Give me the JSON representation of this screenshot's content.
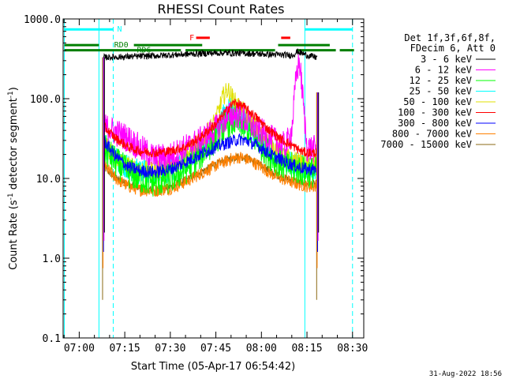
{
  "chart_data": {
    "type": "line",
    "title": "RHESSI Count Rates",
    "xlabel": "Start Time (05-Apr-17 06:54:42)",
    "ylabel_main": "Count Rate (s",
    "ylabel_sup1": "-1",
    "ylabel_mid": " detector segment",
    "ylabel_sup2": "-1",
    "ylabel_end": ")",
    "y_scale": "log",
    "ylim": [
      0.1,
      1000
    ],
    "xlim_minutes": [
      -5.3,
      32.3
    ],
    "xlim_labels": [
      "06:54:42",
      "08:33:42"
    ],
    "x_ticks": [
      {
        "label": "07:00",
        "t": 420
      },
      {
        "label": "07:15",
        "t": 435
      },
      {
        "label": "07:30",
        "t": 450
      },
      {
        "label": "07:45",
        "t": 465
      },
      {
        "label": "08:00",
        "t": 480
      },
      {
        "label": "08:15",
        "t": 495
      },
      {
        "label": "08:30",
        "t": 510
      }
    ],
    "y_ticks": [
      {
        "label": "1000.0",
        "v": 1000
      },
      {
        "label": "100.0",
        "v": 100
      },
      {
        "label": "10.0",
        "v": 10
      },
      {
        "label": "1.0",
        "v": 1
      },
      {
        "label": "0.1",
        "v": 0.1
      }
    ],
    "legend": {
      "placement": "right",
      "header": [
        "Det 1f,3f,6f,8f,",
        "FDecim 6, Att 0"
      ],
      "entries": [
        {
          "label": "3 - 6 keV",
          "color": "#000000"
        },
        {
          "label": "6 - 12 keV",
          "color": "#ff00ff"
        },
        {
          "label": "12 - 25 keV",
          "color": "#00ff00"
        },
        {
          "label": "25 - 50 keV",
          "color": "#00ffff"
        },
        {
          "label": "50 - 100 keV",
          "color": "#e0e000"
        },
        {
          "label": "100 - 300 keV",
          "color": "#ff0000"
        },
        {
          "label": "300 - 800 keV",
          "color": "#0000ff"
        },
        {
          "label": "800 - 7000 keV",
          "color": "#ff8000"
        },
        {
          "label": "7000 - 15000 keV",
          "color": "#8b6914"
        }
      ]
    },
    "series": [
      {
        "name": "3 - 6 keV",
        "color": "#000000",
        "noise": 0.04,
        "points": [
          [
            428,
            330
          ],
          [
            435,
            335
          ],
          [
            445,
            345
          ],
          [
            455,
            360
          ],
          [
            465,
            375
          ],
          [
            475,
            370
          ],
          [
            482,
            360
          ],
          [
            490,
            350
          ],
          [
            492,
            390
          ],
          [
            495,
            350
          ],
          [
            498,
            330
          ],
          [
            498.3,
            330
          ]
        ]
      },
      {
        "name": "6 - 12 keV",
        "color": "#ff00ff",
        "noise": 0.18,
        "points": [
          [
            428,
            45
          ],
          [
            432,
            38
          ],
          [
            436,
            32
          ],
          [
            440,
            24
          ],
          [
            445,
            18
          ],
          [
            450,
            19
          ],
          [
            455,
            24
          ],
          [
            460,
            30
          ],
          [
            465,
            42
          ],
          [
            469,
            60
          ],
          [
            472,
            65
          ],
          [
            476,
            48
          ],
          [
            480,
            38
          ],
          [
            484,
            30
          ],
          [
            488,
            25
          ],
          [
            490,
            40
          ],
          [
            491.5,
            200
          ],
          [
            492.5,
            300
          ],
          [
            493.5,
            120
          ],
          [
            495,
            24
          ],
          [
            498,
            23
          ],
          [
            498.3,
            23
          ]
        ]
      },
      {
        "name": "12 - 25 keV",
        "color": "#00ff00",
        "noise": 0.2,
        "points": [
          [
            428,
            24
          ],
          [
            432,
            16
          ],
          [
            436,
            12
          ],
          [
            440,
            10
          ],
          [
            445,
            9
          ],
          [
            450,
            10
          ],
          [
            455,
            13
          ],
          [
            460,
            20
          ],
          [
            465,
            32
          ],
          [
            469,
            50
          ],
          [
            472,
            52
          ],
          [
            476,
            38
          ],
          [
            480,
            26
          ],
          [
            484,
            18
          ],
          [
            488,
            14
          ],
          [
            492,
            13
          ],
          [
            495,
            12
          ],
          [
            498,
            12
          ],
          [
            498.3,
            12
          ]
        ]
      },
      {
        "name": "25 - 50 keV",
        "color": "#00ffff",
        "noise": 0.16,
        "points": [
          [
            428,
            26
          ],
          [
            432,
            18
          ],
          [
            436,
            14
          ],
          [
            440,
            12
          ],
          [
            445,
            11.5
          ],
          [
            450,
            13
          ],
          [
            455,
            17
          ],
          [
            460,
            24
          ],
          [
            465,
            40
          ],
          [
            468,
            65
          ],
          [
            469.5,
            80
          ],
          [
            472,
            62
          ],
          [
            476,
            45
          ],
          [
            480,
            30
          ],
          [
            484,
            21
          ],
          [
            488,
            16
          ],
          [
            492,
            15
          ],
          [
            495,
            14
          ],
          [
            498,
            14
          ],
          [
            498.3,
            14
          ]
        ]
      },
      {
        "name": "50 - 100 keV",
        "color": "#e0e000",
        "noise": 0.12,
        "points": [
          [
            428,
            27
          ],
          [
            432,
            19
          ],
          [
            436,
            14.5
          ],
          [
            440,
            13
          ],
          [
            445,
            12.5
          ],
          [
            450,
            14
          ],
          [
            455,
            19
          ],
          [
            460,
            28
          ],
          [
            465,
            55
          ],
          [
            467.5,
            110
          ],
          [
            469,
            130
          ],
          [
            471,
            95
          ],
          [
            474,
            70
          ],
          [
            478,
            45
          ],
          [
            482,
            30
          ],
          [
            486,
            21
          ],
          [
            490,
            17
          ],
          [
            495,
            15
          ],
          [
            498,
            15
          ],
          [
            498.3,
            15
          ]
        ]
      },
      {
        "name": "100 - 300 keV",
        "color": "#ff0000",
        "noise": 0.06,
        "points": [
          [
            428,
            45
          ],
          [
            432,
            32
          ],
          [
            436,
            25
          ],
          [
            440,
            22
          ],
          [
            445,
            21
          ],
          [
            450,
            22
          ],
          [
            455,
            25
          ],
          [
            460,
            33
          ],
          [
            465,
            48
          ],
          [
            469,
            75
          ],
          [
            471,
            90
          ],
          [
            474,
            80
          ],
          [
            478,
            60
          ],
          [
            482,
            42
          ],
          [
            486,
            32
          ],
          [
            490,
            26
          ],
          [
            493,
            22
          ],
          [
            495,
            21
          ],
          [
            498,
            21
          ],
          [
            498.3,
            21
          ]
        ]
      },
      {
        "name": "300 - 800 keV",
        "color": "#0000ff",
        "noise": 0.08,
        "points": [
          [
            428,
            30
          ],
          [
            432,
            19
          ],
          [
            436,
            14
          ],
          [
            440,
            12.5
          ],
          [
            445,
            12
          ],
          [
            450,
            13
          ],
          [
            455,
            16
          ],
          [
            460,
            20
          ],
          [
            465,
            25
          ],
          [
            470,
            29
          ],
          [
            473,
            31
          ],
          [
            476,
            29
          ],
          [
            480,
            24
          ],
          [
            484,
            19
          ],
          [
            488,
            16
          ],
          [
            492,
            14
          ],
          [
            495,
            13
          ],
          [
            498,
            13
          ],
          [
            498.3,
            13
          ]
        ]
      },
      {
        "name": "800 - 7000 keV",
        "color": "#ff8000",
        "noise": 0.08,
        "points": [
          [
            428,
            15
          ],
          [
            432,
            10
          ],
          [
            436,
            8
          ],
          [
            440,
            7.2
          ],
          [
            445,
            7
          ],
          [
            450,
            7.5
          ],
          [
            455,
            9
          ],
          [
            460,
            11.5
          ],
          [
            465,
            14.5
          ],
          [
            470,
            17.5
          ],
          [
            473,
            18.5
          ],
          [
            476,
            17
          ],
          [
            480,
            14
          ],
          [
            484,
            11
          ],
          [
            488,
            9.5
          ],
          [
            492,
            8.5
          ],
          [
            495,
            8
          ],
          [
            498,
            8
          ],
          [
            498.3,
            8
          ]
        ]
      },
      {
        "name": "7000 - 15000 keV",
        "color": "#8b6914",
        "noise": 0.05,
        "points": [
          [
            428,
            14
          ],
          [
            432,
            10
          ],
          [
            436,
            8.5
          ],
          [
            440,
            7.5
          ],
          [
            445,
            7.2
          ],
          [
            450,
            7.8
          ],
          [
            455,
            9.5
          ],
          [
            460,
            12
          ],
          [
            465,
            15
          ],
          [
            470,
            18
          ],
          [
            473,
            19
          ],
          [
            476,
            17.5
          ],
          [
            480,
            14.5
          ],
          [
            484,
            11.5
          ],
          [
            488,
            10
          ],
          [
            492,
            9
          ],
          [
            495,
            8.5
          ],
          [
            498,
            8.5
          ],
          [
            498.3,
            8.5
          ]
        ]
      }
    ],
    "drops": [
      {
        "t": 428,
        "from": 0.3,
        "to": 330
      },
      {
        "t": 498.5,
        "from": 0.3,
        "to": 120
      }
    ],
    "vlines": [
      {
        "t": 415.1,
        "style": "solid",
        "color": "#00ffff"
      },
      {
        "t": 426.5,
        "style": "solid",
        "color": "#00ffff"
      },
      {
        "t": 431.2,
        "style": "dashed",
        "color": "#00ffff"
      },
      {
        "t": 494.3,
        "style": "solid",
        "color": "#00ffff"
      },
      {
        "t": 510.0,
        "style": "dashed",
        "color": "#00ffff"
      }
    ],
    "annotation_bars": [
      {
        "label": "N",
        "color": "#00ffff",
        "v": 740,
        "segments": [
          [
            415.1,
            431.2
          ],
          [
            494.3,
            510.0
          ]
        ],
        "label_t": 432.5
      },
      {
        "label": "F",
        "color": "#ff0000",
        "v": 580,
        "segments": [
          [
            458.5,
            463.0
          ],
          [
            486.5,
            489.5
          ]
        ],
        "label_t": 456.3
      },
      {
        "label": "RD0",
        "color": "#007f00",
        "v": 470,
        "segments": [
          [
            415.1,
            426.5
          ],
          [
            438.0,
            460.5
          ],
          [
            485.5,
            502.5
          ]
        ],
        "label_t": 431.5
      },
      {
        "label": "RD6",
        "color": "#007f00",
        "v": 405,
        "segments": [
          [
            415.1,
            453.5
          ],
          [
            455.0,
            484.5
          ],
          [
            491.5,
            504.5
          ],
          [
            505.8,
            510.5
          ]
        ],
        "label_t": 439.0
      }
    ],
    "footer": "31-Aug-2022 18:56"
  }
}
